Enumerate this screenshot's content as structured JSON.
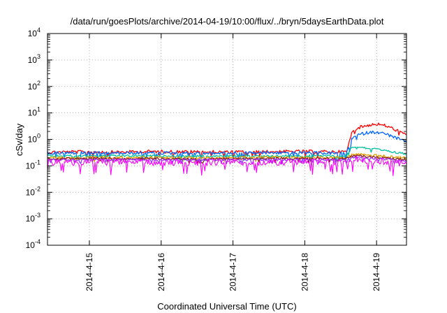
{
  "chart_data": {
    "type": "line",
    "title": "/data/run/goesPlots/archive/2014-04-19/10:00/flux/../bryn/5daysEarthData.plot",
    "xlabel": "Coordinated Universal Time (UTC)",
    "ylabel": "cSv/day",
    "x_start": "2014-04-14 10:00",
    "x_end": "2014-04-19 10:00",
    "x_ticks": [
      {
        "label": "2014-4-15",
        "date": "2014-04-15"
      },
      {
        "label": "2014-4-16",
        "date": "2014-04-16"
      },
      {
        "label": "2014-4-17",
        "date": "2014-04-17"
      },
      {
        "label": "2014-4-18",
        "date": "2014-04-18"
      },
      {
        "label": "2014-4-19",
        "date": "2014-04-19"
      }
    ],
    "y_scale": "log",
    "ylim": [
      0.0001,
      10000
    ],
    "y_ticks": [
      {
        "base": "10",
        "exp": "-4",
        "value": 0.0001
      },
      {
        "base": "10",
        "exp": "-3",
        "value": 0.001
      },
      {
        "base": "10",
        "exp": "-2",
        "value": 0.01
      },
      {
        "base": "10",
        "exp": "-1",
        "value": 0.1
      },
      {
        "base": "10",
        "exp": "0",
        "value": 1
      },
      {
        "base": "10",
        "exp": "1",
        "value": 10
      },
      {
        "base": "10",
        "exp": "2",
        "value": 100
      },
      {
        "base": "10",
        "exp": "3",
        "value": 1000
      },
      {
        "base": "10",
        "exp": "4",
        "value": 10000
      }
    ],
    "grid": true,
    "legend": "none",
    "series": [
      {
        "color": "#ff0000",
        "points": [
          [
            "2014-04-14 10:00",
            0.33
          ],
          [
            "2014-04-14 22:00",
            0.34
          ],
          [
            "2014-04-15 10:00",
            0.33
          ],
          [
            "2014-04-15 22:00",
            0.35
          ],
          [
            "2014-04-16 10:00",
            0.34
          ],
          [
            "2014-04-16 22:00",
            0.33
          ],
          [
            "2014-04-17 10:00",
            0.34
          ],
          [
            "2014-04-17 22:00",
            0.35
          ],
          [
            "2014-04-18 10:00",
            0.34
          ],
          [
            "2014-04-18 14:00",
            0.34
          ],
          [
            "2014-04-18 15:00",
            0.9
          ],
          [
            "2014-04-18 16:00",
            2.2
          ],
          [
            "2014-04-18 18:00",
            2.8
          ],
          [
            "2014-04-18 21:00",
            3.4
          ],
          [
            "2014-04-19 00:00",
            3.8
          ],
          [
            "2014-04-19 03:00",
            3.3
          ],
          [
            "2014-04-19 06:00",
            2.4
          ],
          [
            "2014-04-19 10:00",
            1.5
          ]
        ]
      },
      {
        "color": "#0066ff",
        "points": [
          [
            "2014-04-14 10:00",
            0.3
          ],
          [
            "2014-04-14 22:00",
            0.31
          ],
          [
            "2014-04-15 10:00",
            0.3
          ],
          [
            "2014-04-15 22:00",
            0.31
          ],
          [
            "2014-04-16 10:00",
            0.3
          ],
          [
            "2014-04-16 22:00",
            0.3
          ],
          [
            "2014-04-17 10:00",
            0.31
          ],
          [
            "2014-04-17 22:00",
            0.31
          ],
          [
            "2014-04-18 10:00",
            0.3
          ],
          [
            "2014-04-18 14:00",
            0.3
          ],
          [
            "2014-04-18 15:00",
            0.6
          ],
          [
            "2014-04-18 16:00",
            1.2
          ],
          [
            "2014-04-18 18:00",
            1.5
          ],
          [
            "2014-04-18 21:00",
            1.8
          ],
          [
            "2014-04-19 00:00",
            1.9
          ],
          [
            "2014-04-19 03:00",
            1.6
          ],
          [
            "2014-04-19 06:00",
            1.2
          ],
          [
            "2014-04-19 10:00",
            0.8
          ]
        ]
      },
      {
        "color": "#00c0a0",
        "points": [
          [
            "2014-04-14 10:00",
            0.24
          ],
          [
            "2014-04-15 10:00",
            0.24
          ],
          [
            "2014-04-16 10:00",
            0.23
          ],
          [
            "2014-04-17 10:00",
            0.24
          ],
          [
            "2014-04-18 10:00",
            0.24
          ],
          [
            "2014-04-18 14:00",
            0.24
          ],
          [
            "2014-04-18 15:00",
            0.45
          ],
          [
            "2014-04-18 17:00",
            0.55
          ],
          [
            "2014-04-18 20:00",
            0.48
          ],
          [
            "2014-04-19 00:00",
            0.42
          ],
          [
            "2014-04-19 04:00",
            0.35
          ],
          [
            "2014-04-19 10:00",
            0.28
          ]
        ]
      },
      {
        "color": "#e0a000",
        "points": [
          [
            "2014-04-14 10:00",
            0.21
          ],
          [
            "2014-04-15 10:00",
            0.21
          ],
          [
            "2014-04-16 10:00",
            0.2
          ],
          [
            "2014-04-17 10:00",
            0.21
          ],
          [
            "2014-04-18 10:00",
            0.21
          ],
          [
            "2014-04-18 14:00",
            0.21
          ],
          [
            "2014-04-18 15:00",
            0.26
          ],
          [
            "2014-04-18 18:00",
            0.27
          ],
          [
            "2014-04-19 00:00",
            0.25
          ],
          [
            "2014-04-19 10:00",
            0.2
          ]
        ]
      },
      {
        "color": "#8b1a1a",
        "points": [
          [
            "2014-04-14 10:00",
            0.19
          ],
          [
            "2014-04-15 10:00",
            0.19
          ],
          [
            "2014-04-16 10:00",
            0.18
          ],
          [
            "2014-04-17 10:00",
            0.19
          ],
          [
            "2014-04-18 10:00",
            0.19
          ],
          [
            "2014-04-18 14:00",
            0.19
          ],
          [
            "2014-04-18 15:00",
            0.23
          ],
          [
            "2014-04-18 18:00",
            0.24
          ],
          [
            "2014-04-19 00:00",
            0.21
          ],
          [
            "2014-04-19 10:00",
            0.17
          ]
        ]
      },
      {
        "color": "#9b30ff",
        "points": [
          [
            "2014-04-14 10:00",
            0.17
          ],
          [
            "2014-04-15 10:00",
            0.17
          ],
          [
            "2014-04-16 10:00",
            0.17
          ],
          [
            "2014-04-17 10:00",
            0.17
          ],
          [
            "2014-04-18 10:00",
            0.17
          ],
          [
            "2014-04-18 14:00",
            0.17
          ],
          [
            "2014-04-18 15:00",
            0.2
          ],
          [
            "2014-04-18 18:00",
            0.21
          ],
          [
            "2014-04-19 00:00",
            0.19
          ],
          [
            "2014-04-19 10:00",
            0.15
          ]
        ]
      },
      {
        "color": "#ff00ff",
        "points": [
          [
            "2014-04-14 10:00",
            0.14
          ],
          [
            "2014-04-14 22:00",
            0.13
          ],
          [
            "2014-04-15 10:00",
            0.14
          ],
          [
            "2014-04-15 22:00",
            0.13
          ],
          [
            "2014-04-16 10:00",
            0.13
          ],
          [
            "2014-04-16 22:00",
            0.14
          ],
          [
            "2014-04-17 10:00",
            0.13
          ],
          [
            "2014-04-17 22:00",
            0.14
          ],
          [
            "2014-04-18 10:00",
            0.14
          ],
          [
            "2014-04-18 14:00",
            0.14
          ],
          [
            "2014-04-18 15:00",
            0.17
          ],
          [
            "2014-04-18 18:00",
            0.18
          ],
          [
            "2014-04-19 00:00",
            0.15
          ],
          [
            "2014-04-19 10:00",
            0.12
          ]
        ]
      }
    ]
  }
}
